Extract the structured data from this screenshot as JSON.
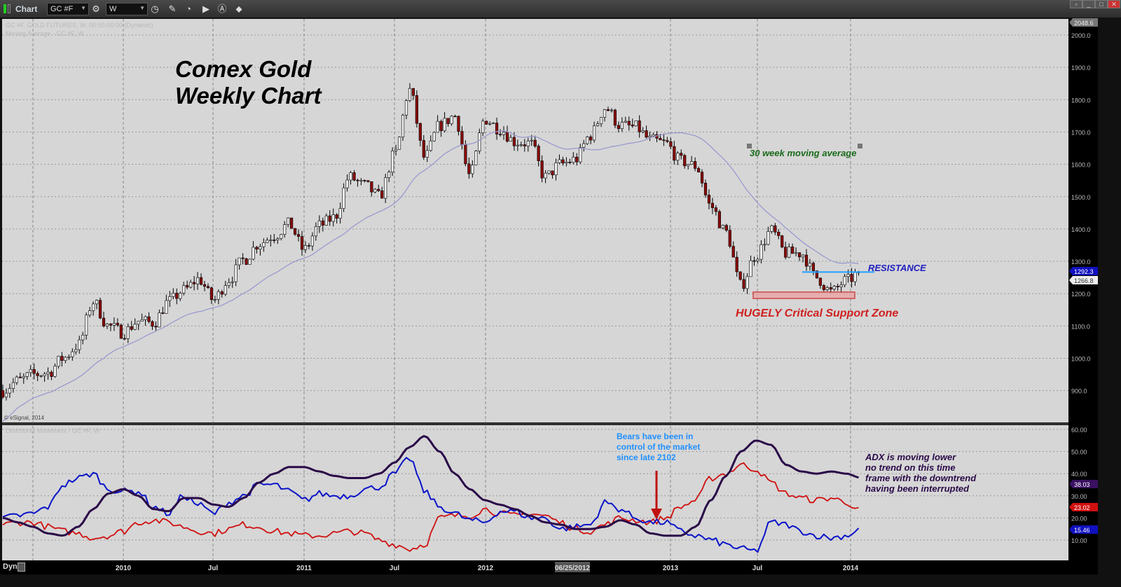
{
  "toolbar": {
    "title": "Chart",
    "symbol": "GC #F",
    "interval": "W",
    "icons": [
      "chart-settings-icon",
      "interval-clock-icon",
      "pencil-icon",
      "studies-icon",
      "play-icon",
      "alert-icon",
      "link-icon"
    ]
  },
  "window_controls": [
    "restore",
    "minimize",
    "maximize",
    "close"
  ],
  "price_panel": {
    "legend1": "GC #F, GOLD FUTURES, W, 00:00-00:00 (Dynamic)",
    "legend2": "Moving Average - GC #F, W",
    "copyright": "© eSignal, 2014",
    "top_label": "2048.6",
    "last_price": "1292.3",
    "second_price": "1266.8",
    "price_color": "#1010c0"
  },
  "indicator_panel": {
    "legend": "Directional Movement - GC #F, W",
    "adx_label": "38.03",
    "minus_di_label": "23.02",
    "plus_di_label": "15.46",
    "colors": {
      "adx": "#2a0a48",
      "plus_di": "#0a14c8",
      "minus_di": "#d01010"
    }
  },
  "annotations": {
    "title_line1": "Comex Gold",
    "title_line2": "Weekly Chart",
    "ma_note": "30 week moving average",
    "resistance": "RESISTANCE",
    "support": "HUGELY Critical Support Zone",
    "bears1": "Bears have been in",
    "bears2": "control of the market",
    "bears3": "since late  2102",
    "adx1": "ADX is moving lower",
    "adx2": "no trend on this time",
    "adx3": "frame with the downtrend",
    "adx4": "having been interrupted"
  },
  "x_axis": {
    "dyn": "Dyn",
    "ticks": [
      "2010",
      "Jul",
      "2011",
      "Jul",
      "2012",
      "06/25/2012",
      "2013",
      "Jul",
      "2014"
    ]
  },
  "chart_data": [
    {
      "type": "candlestick",
      "interval": "weekly",
      "start_month": "2009-05",
      "end_month": "2014-02",
      "ylim": [
        820,
        2048.6
      ],
      "yticks": [
        "2000.0",
        "1900.0",
        "1800.0",
        "1700.0",
        "1600.0",
        "1500.0",
        "1400.0",
        "1300.0",
        "1200.0",
        "1100.0",
        "1000.0",
        "900.0"
      ],
      "monthly_close": [
        900,
        930,
        950,
        955,
        1000,
        1040,
        1175,
        1100,
        1080,
        1115,
        1110,
        1175,
        1210,
        1245,
        1180,
        1245,
        1305,
        1355,
        1380,
        1415,
        1335,
        1410,
        1435,
        1560,
        1535,
        1500,
        1630,
        1830,
        1620,
        1720,
        1750,
        1565,
        1740,
        1710,
        1670,
        1665,
        1560,
        1600,
        1615,
        1690,
        1775,
        1720,
        1715,
        1675,
        1665,
        1610,
        1595,
        1470,
        1390,
        1225,
        1320,
        1395,
        1325,
        1325,
        1250,
        1205,
        1240,
        1266.8
      ],
      "moving_average_period": 30,
      "support_zone": [
        1185,
        1205
      ],
      "resistance_level": 1266.8
    },
    {
      "type": "line",
      "title": "Directional Movement",
      "ylim": [
        0,
        62
      ],
      "yticks": [
        "60.00",
        "50.00",
        "40.00",
        "30.00",
        "20.00",
        "10.00"
      ],
      "series": [
        {
          "name": "ADX",
          "values": [
            20,
            18,
            16,
            13,
            12,
            16,
            24,
            31,
            33,
            30,
            24,
            23,
            29,
            29,
            26,
            25,
            29,
            36,
            40,
            43,
            43,
            41,
            39,
            38,
            38,
            40,
            45,
            52,
            57,
            50,
            40,
            33,
            28,
            26,
            24,
            21,
            18,
            17,
            15,
            15,
            16,
            19,
            17,
            13,
            12,
            12,
            16,
            28,
            39,
            50,
            55,
            53,
            44,
            41,
            40,
            41,
            40,
            38.03
          ]
        },
        {
          "name": "+DI",
          "values": [
            20,
            21,
            22,
            25,
            35,
            38,
            40,
            33,
            32,
            32,
            25,
            22,
            30,
            26,
            22,
            27,
            30,
            35,
            35,
            32,
            28,
            31,
            30,
            30,
            33,
            34,
            40,
            47,
            32,
            25,
            22,
            19,
            18,
            23,
            23,
            20,
            20,
            15,
            16,
            17,
            27,
            24,
            20,
            18,
            18,
            14,
            12,
            10,
            8,
            6,
            5,
            18,
            17,
            14,
            12,
            11,
            12,
            15.46
          ]
        },
        {
          "name": "-DI",
          "values": [
            17,
            18,
            18,
            16,
            14,
            13,
            11,
            12,
            14,
            18,
            19,
            18,
            16,
            14,
            13,
            15,
            17,
            16,
            14,
            13,
            12,
            12,
            13,
            14,
            13,
            10,
            8,
            6,
            8,
            20,
            21,
            21,
            24,
            22,
            21,
            22,
            21,
            18,
            15,
            14,
            17,
            20,
            19,
            18,
            20,
            25,
            28,
            38,
            40,
            44,
            42,
            36,
            31,
            29,
            28,
            29,
            27,
            23.02
          ]
        }
      ]
    }
  ]
}
